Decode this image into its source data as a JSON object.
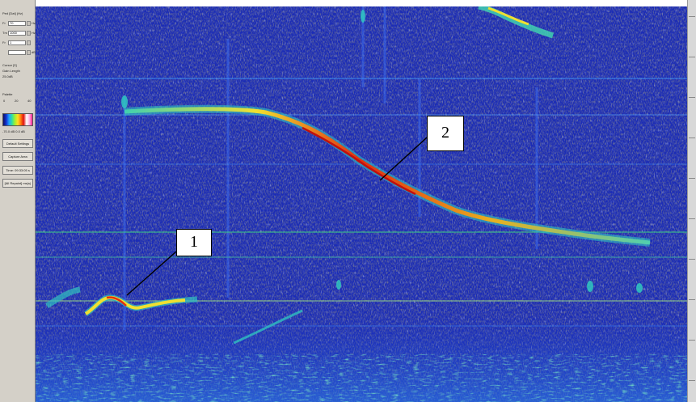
{
  "left_panel": {
    "header": "Ped [Dat] (Hz)",
    "controls": [
      {
        "label": "Fr",
        "value": "70",
        "unit": "Hz"
      },
      {
        "label": "Tm",
        "value": "1000",
        "unit": "Hz"
      },
      {
        "label": "Fr",
        "value": "1",
        "unit": ""
      },
      {
        "label": "",
        "value": "",
        "unit": "dB"
      }
    ],
    "info_lines": [
      "Cursor [0]",
      "Gain Length",
      "25.0dB"
    ],
    "palette_label": "Palette",
    "palette_scale_values": [
      "0",
      "20",
      "40"
    ],
    "palette_caption": "-70.0 dB  0.0 dB",
    "buttons": [
      {
        "label": "Default Settings"
      },
      {
        "label": "Capture Area"
      },
      {
        "label": "Time: 09:33:05 s"
      },
      {
        "label": "[All Repaint] ms(s)"
      }
    ]
  },
  "annotations": [
    {
      "label": "1"
    },
    {
      "label": "2"
    }
  ],
  "colors": {
    "background": "#1a2ab0",
    "noise_dark": "#3a3a3a",
    "track_low": "#30d0a0",
    "track_mid": "#f0e020",
    "track_high": "#e03010"
  }
}
